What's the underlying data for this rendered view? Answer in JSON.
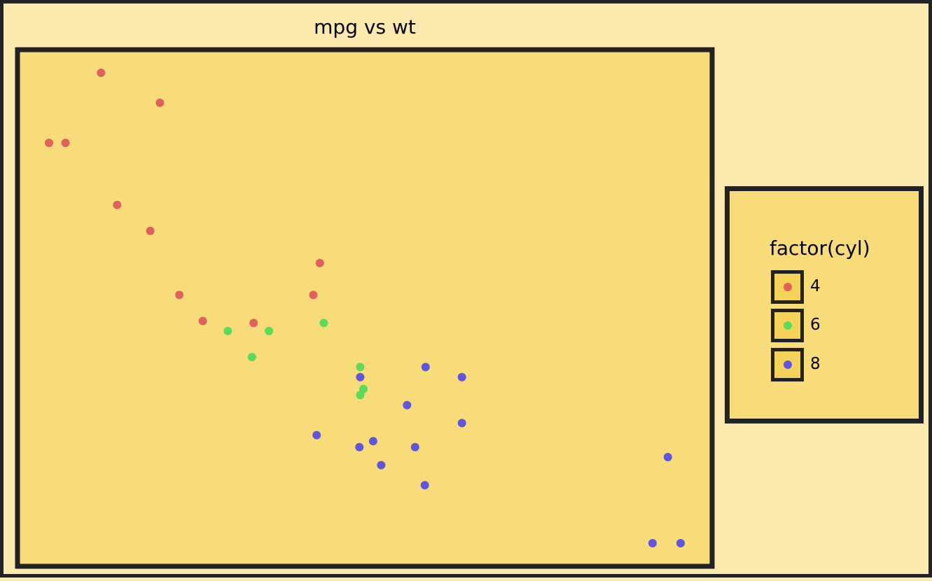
{
  "chart_data": {
    "type": "scatter",
    "title": "mpg vs wt",
    "xlabel": "",
    "ylabel": "",
    "xlim": [
      1.513,
      5.424
    ],
    "ylim": [
      10.4,
      33.9
    ],
    "grid": false,
    "legend_position": "right",
    "legend_title": "factor(cyl)",
    "series": [
      {
        "name": "4",
        "color": "#e06060",
        "x": [
          2.32,
          3.19,
          3.15,
          2.2,
          1.615,
          1.835,
          2.465,
          1.935,
          2.14,
          1.513,
          2.78
        ],
        "y": [
          22.8,
          24.4,
          22.8,
          32.4,
          30.4,
          33.9,
          21.5,
          27.3,
          26.0,
          30.4,
          21.4
        ]
      },
      {
        "name": "6",
        "color": "#5bdb5b",
        "x": [
          2.62,
          2.875,
          3.215,
          3.46,
          3.44,
          3.44,
          2.77
        ],
        "y": [
          21.0,
          21.0,
          21.4,
          18.1,
          19.2,
          17.8,
          19.7
        ]
      },
      {
        "name": "8",
        "color": "#6055dd",
        "x": [
          3.44,
          3.57,
          4.07,
          3.73,
          3.78,
          5.25,
          5.424,
          5.345,
          3.52,
          3.435,
          3.84,
          3.845,
          4.07,
          3.17
        ],
        "y": [
          18.7,
          14.3,
          16.4,
          17.3,
          15.2,
          10.4,
          10.4,
          14.7,
          15.5,
          15.2,
          13.3,
          19.2,
          18.7,
          15.8
        ]
      }
    ]
  }
}
